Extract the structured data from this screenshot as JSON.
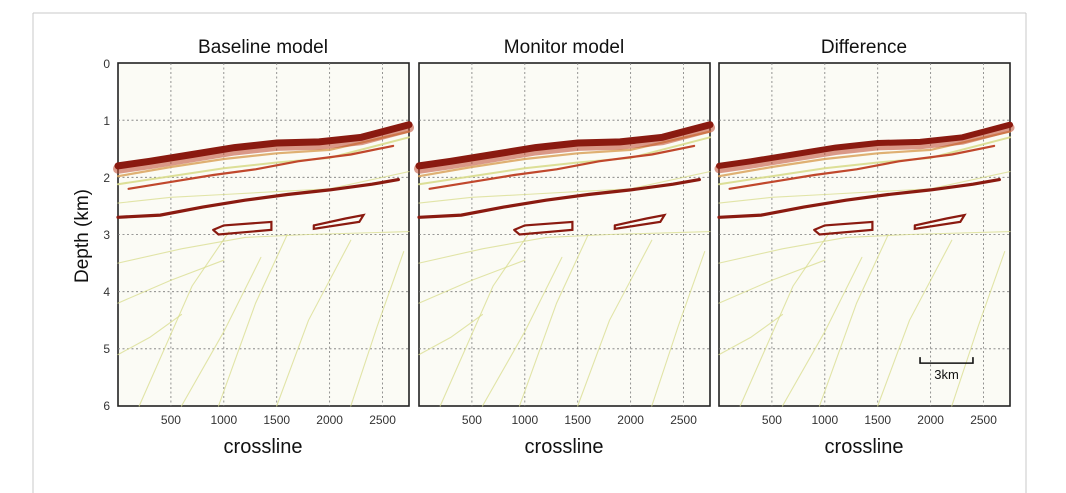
{
  "figure": {
    "ylabel": "Depth (km)",
    "xlabel": "crossline",
    "y_ticks": [
      "0",
      "1",
      "2",
      "3",
      "4",
      "5",
      "6"
    ],
    "x_ticks": [
      "500",
      "1000",
      "1500",
      "2000",
      "2500"
    ],
    "panels": [
      {
        "id": "baseline",
        "title": "Baseline model"
      },
      {
        "id": "monitor",
        "title": "Monitor model"
      },
      {
        "id": "difference",
        "title": "Difference"
      }
    ],
    "scale_bar": {
      "label": "3km",
      "length_crossline": 500
    },
    "axes": {
      "x_range": [
        0,
        2750
      ],
      "y_range": [
        0,
        6
      ],
      "y_inverted": true,
      "grid": true
    },
    "colors": {
      "reflector_dark": "#8a1a10",
      "reflector_mid": "#c0472c",
      "reflector_light": "#d9a25a",
      "faint_trace": "#d8dc8c"
    }
  }
}
